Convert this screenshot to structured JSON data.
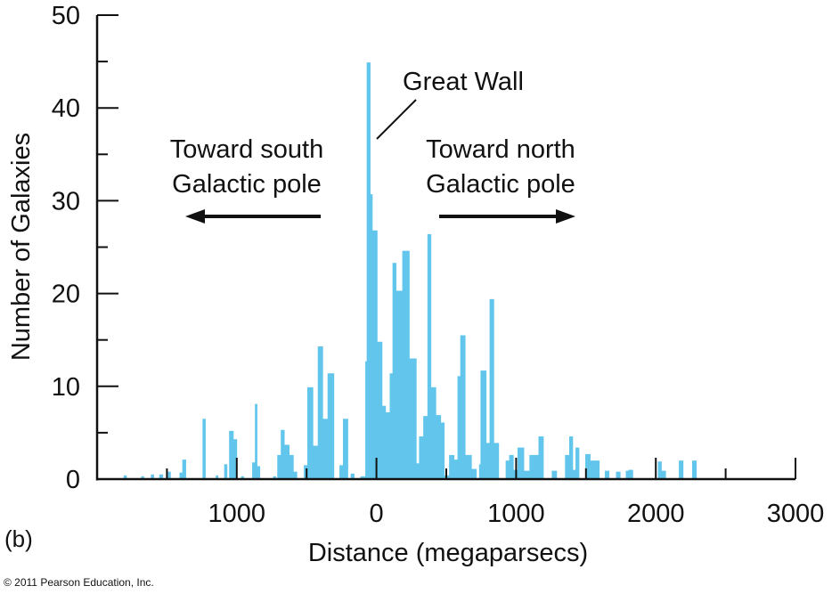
{
  "chart_data": {
    "type": "bar",
    "title": "",
    "xlabel": "Distance (megaparsecs)",
    "ylabel": "Number of Galaxies",
    "ylim": [
      0,
      50
    ],
    "xlim": [
      -2000,
      3000
    ],
    "bar_color": "#62c6ec",
    "y_ticks": [
      "0",
      "10",
      "20",
      "30",
      "40",
      "50"
    ],
    "x_ticks": [
      {
        "value": -1000,
        "label": "1000"
      },
      {
        "value": 0,
        "label": "0"
      },
      {
        "value": 1000,
        "label": "1000"
      },
      {
        "value": 2000,
        "label": "2000"
      },
      {
        "value": 3000,
        "label": "3000"
      }
    ],
    "bins": [
      [
        -1810,
        -1790,
        0.4
      ],
      [
        -1685,
        -1665,
        0.3
      ],
      [
        -1615,
        -1595,
        0.5
      ],
      [
        -1555,
        -1530,
        0.5
      ],
      [
        -1495,
        -1475,
        0.8
      ],
      [
        -1410,
        -1390,
        0.7
      ],
      [
        -1390,
        -1365,
        2.1
      ],
      [
        -1245,
        -1225,
        6.5
      ],
      [
        -1150,
        -1135,
        0.4
      ],
      [
        -1090,
        -1070,
        1.6
      ],
      [
        -1055,
        -1025,
        5.2
      ],
      [
        -1025,
        -1000,
        4.3
      ],
      [
        -970,
        -950,
        0.3
      ],
      [
        -890,
        -870,
        1.8
      ],
      [
        -870,
        -855,
        8.1
      ],
      [
        -855,
        -835,
        1.4
      ],
      [
        -740,
        -720,
        0.3
      ],
      [
        -710,
        -685,
        2.6
      ],
      [
        -685,
        -660,
        5.3
      ],
      [
        -660,
        -625,
        3.7
      ],
      [
        -625,
        -595,
        2.6
      ],
      [
        -595,
        -570,
        0.8
      ],
      [
        -520,
        -495,
        1.5
      ],
      [
        -495,
        -455,
        9.9
      ],
      [
        -455,
        -420,
        3.6
      ],
      [
        -420,
        -385,
        14.3
      ],
      [
        -385,
        -350,
        6.5
      ],
      [
        -350,
        -305,
        11.4
      ],
      [
        -265,
        -240,
        1.5
      ],
      [
        -240,
        -205,
        6.5
      ],
      [
        -185,
        -160,
        0.6
      ],
      [
        -115,
        -80,
        0.3
      ],
      [
        -80,
        -70,
        12.7
      ],
      [
        -70,
        -45,
        44.9
      ],
      [
        -45,
        -30,
        30.7
      ],
      [
        -30,
        5,
        26.8
      ],
      [
        5,
        40,
        14.8
      ],
      [
        40,
        65,
        7.9
      ],
      [
        65,
        95,
        7.2
      ],
      [
        95,
        115,
        11.4
      ],
      [
        115,
        140,
        23.3
      ],
      [
        140,
        185,
        20.3
      ],
      [
        185,
        235,
        24.6
      ],
      [
        235,
        285,
        13.0
      ],
      [
        285,
        305,
        1.7
      ],
      [
        305,
        335,
        4.6
      ],
      [
        335,
        365,
        6.8
      ],
      [
        365,
        390,
        26.4
      ],
      [
        390,
        425,
        9.9
      ],
      [
        425,
        460,
        6.9
      ],
      [
        460,
        485,
        6.1
      ],
      [
        485,
        520,
        0.4
      ],
      [
        520,
        555,
        2.6
      ],
      [
        555,
        580,
        2.1
      ],
      [
        580,
        600,
        11.1
      ],
      [
        600,
        635,
        15.5
      ],
      [
        635,
        680,
        2.6
      ],
      [
        680,
        715,
        1.1
      ],
      [
        735,
        745,
        1.6
      ],
      [
        745,
        785,
        11.7
      ],
      [
        785,
        810,
        3.9
      ],
      [
        810,
        840,
        19.4
      ],
      [
        840,
        875,
        3.9
      ],
      [
        925,
        950,
        2.0
      ],
      [
        950,
        980,
        2.6
      ],
      [
        980,
        1010,
        1.0
      ],
      [
        1010,
        1055,
        3.4
      ],
      [
        1055,
        1095,
        0.9
      ],
      [
        1095,
        1160,
        2.6
      ],
      [
        1160,
        1195,
        4.6
      ],
      [
        1255,
        1290,
        0.9
      ],
      [
        1350,
        1380,
        2.6
      ],
      [
        1380,
        1405,
        4.6
      ],
      [
        1405,
        1425,
        1.0
      ],
      [
        1425,
        1450,
        3.4
      ],
      [
        1495,
        1530,
        2.7
      ],
      [
        1530,
        1595,
        2.0
      ],
      [
        1635,
        1665,
        0.9
      ],
      [
        1715,
        1745,
        0.8
      ],
      [
        1785,
        1805,
        0.9
      ],
      [
        1805,
        1835,
        1.0
      ],
      [
        2015,
        2040,
        1.9
      ],
      [
        2040,
        2070,
        0.9
      ],
      [
        2165,
        2195,
        2.0
      ],
      [
        2260,
        2290,
        2.0
      ]
    ],
    "annotations": {
      "great_wall": "Great Wall",
      "south_line1": "Toward south",
      "south_line2": "Galactic pole",
      "north_line1": "Toward north",
      "north_line2": "Galactic pole"
    }
  },
  "panel_label": "(b)",
  "copyright": "© 2011 Pearson Education, Inc."
}
